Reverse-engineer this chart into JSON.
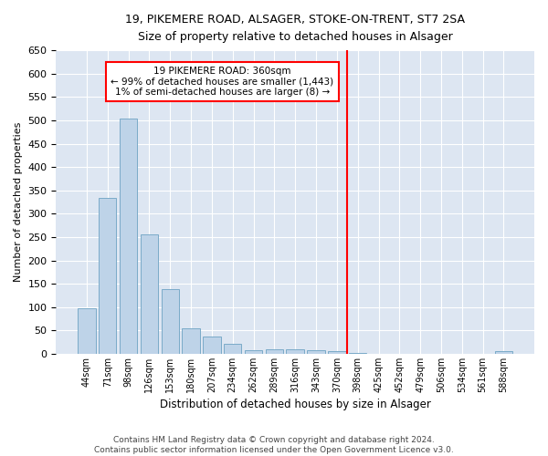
{
  "title1": "19, PIKEMERE ROAD, ALSAGER, STOKE-ON-TRENT, ST7 2SA",
  "title2": "Size of property relative to detached houses in Alsager",
  "xlabel": "Distribution of detached houses by size in Alsager",
  "ylabel": "Number of detached properties",
  "bar_color": "#bed3e8",
  "bar_edge_color": "#7aaac8",
  "bg_color": "#dde6f2",
  "grid_color": "#ffffff",
  "categories": [
    "44sqm",
    "71sqm",
    "98sqm",
    "126sqm",
    "153sqm",
    "180sqm",
    "207sqm",
    "234sqm",
    "262sqm",
    "289sqm",
    "316sqm",
    "343sqm",
    "370sqm",
    "398sqm",
    "425sqm",
    "452sqm",
    "479sqm",
    "506sqm",
    "534sqm",
    "561sqm",
    "588sqm"
  ],
  "values": [
    97,
    334,
    504,
    255,
    138,
    54,
    37,
    21,
    7,
    10,
    10,
    7,
    5,
    2,
    0,
    0,
    0,
    0,
    0,
    0,
    5
  ],
  "vline_pos": 12.5,
  "annotation_line1": "19 PIKEMERE ROAD: 360sqm",
  "annotation_line2": "← 99% of detached houses are smaller (1,443)",
  "annotation_line3": "1% of semi-detached houses are larger (8) →",
  "footer1": "Contains HM Land Registry data © Crown copyright and database right 2024.",
  "footer2": "Contains public sector information licensed under the Open Government Licence v3.0.",
  "ylim": [
    0,
    650
  ],
  "yticks": [
    0,
    50,
    100,
    150,
    200,
    250,
    300,
    350,
    400,
    450,
    500,
    550,
    600,
    650
  ],
  "title1_fontsize": 9.0,
  "title2_fontsize": 8.5,
  "ylabel_fontsize": 8.0,
  "xlabel_fontsize": 8.5,
  "ytick_fontsize": 8.0,
  "xtick_fontsize": 7.0,
  "annotation_fontsize": 7.5,
  "footer_fontsize": 6.5
}
